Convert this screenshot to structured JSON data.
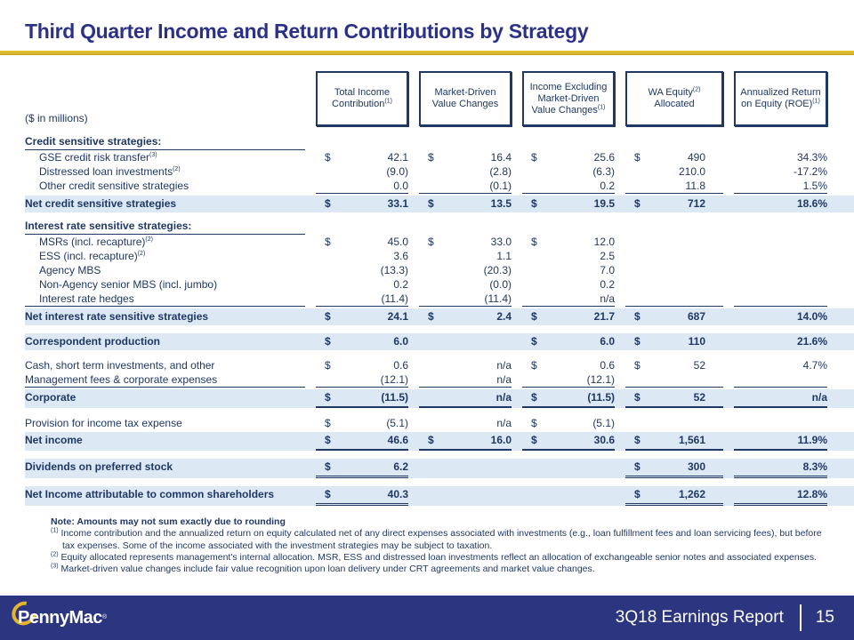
{
  "title": "Third Quarter Income and Return Contributions by Strategy",
  "units_label": "($ in millions)",
  "colors": {
    "navy_text": "#1F3864",
    "title_blue": "#2B3189",
    "gold": "#D9B62C",
    "row_highlight": "#DCE8F4",
    "footer_bg": "#2C3680",
    "logo_gold": "#E8B42A"
  },
  "table": {
    "columns": [
      {
        "lines": [
          "Total Income",
          "Contribution|(1)"
        ]
      },
      {
        "lines": [
          "Market-Driven",
          "Value Changes"
        ]
      },
      {
        "lines": [
          "Income Excluding",
          "Market-Driven",
          "Value Changes|(1)"
        ]
      },
      {
        "lines": [
          "WA Equity|(2)",
          "Allocated"
        ]
      },
      {
        "lines": [
          "Annualized Return",
          "on Equity (ROE)|(1)"
        ]
      }
    ],
    "rows": [
      {
        "type": "section",
        "label": "Credit sensitive strategies:",
        "label_underline": true
      },
      {
        "type": "detail",
        "indent": true,
        "label": "GSE credit risk transfer",
        "sup": "(3)",
        "cells": [
          [
            "$",
            "42.1"
          ],
          [
            "$",
            "16.4"
          ],
          [
            "$",
            "25.6"
          ],
          [
            "$",
            "490"
          ],
          [
            "",
            "34.3%"
          ]
        ]
      },
      {
        "type": "detail",
        "indent": true,
        "label": "Distressed loan investments",
        "sup": "(2)",
        "cells": [
          [
            "",
            "(9.0)"
          ],
          [
            "",
            "(2.8)"
          ],
          [
            "",
            "(6.3)"
          ],
          [
            "",
            "210.0"
          ],
          [
            "",
            "-17.2%"
          ]
        ]
      },
      {
        "type": "detail",
        "indent": true,
        "label": "Other credit sensitive strategies",
        "underline": "single",
        "cells": [
          [
            "",
            "0.0"
          ],
          [
            "",
            "(0.1)"
          ],
          [
            "",
            "0.2"
          ],
          [
            "",
            "11.8"
          ],
          [
            "",
            "1.5%"
          ]
        ]
      },
      {
        "type": "total",
        "highlight": true,
        "label": "Net credit sensitive strategies",
        "cells": [
          [
            "$",
            "33.1"
          ],
          [
            "$",
            "13.5"
          ],
          [
            "$",
            "19.5"
          ],
          [
            "$",
            "712"
          ],
          [
            "",
            "18.6%"
          ]
        ]
      },
      {
        "type": "section",
        "label": "Interest rate sensitive strategies:",
        "label_underline": true
      },
      {
        "type": "detail",
        "indent": true,
        "label": "MSRs (incl. recapture)",
        "sup": "(2)",
        "cells": [
          [
            "$",
            "45.0"
          ],
          [
            "$",
            "33.0"
          ],
          [
            "$",
            "12.0"
          ],
          null,
          null
        ]
      },
      {
        "type": "detail",
        "indent": true,
        "label": "ESS (incl. recapture)",
        "sup": "(2)",
        "cells": [
          [
            "",
            "3.6"
          ],
          [
            "",
            "1.1"
          ],
          [
            "",
            "2.5"
          ],
          null,
          null
        ]
      },
      {
        "type": "detail",
        "indent": true,
        "label": "Agency MBS",
        "cells": [
          [
            "",
            "(13.3)"
          ],
          [
            "",
            "(20.3)"
          ],
          [
            "",
            "7.0"
          ],
          null,
          null
        ]
      },
      {
        "type": "detail",
        "indent": true,
        "label": "Non-Agency senior MBS (incl. jumbo)",
        "cells": [
          [
            "",
            "0.2"
          ],
          [
            "",
            "(0.0)"
          ],
          [
            "",
            "0.2"
          ],
          null,
          null
        ]
      },
      {
        "type": "detail",
        "indent": true,
        "label": "Interest rate hedges",
        "label_underline": true,
        "underline": "single",
        "cells": [
          [
            "",
            "(11.4)"
          ],
          [
            "",
            "(11.4)"
          ],
          [
            "",
            "n/a"
          ],
          [
            "",
            ""
          ],
          [
            "",
            ""
          ]
        ]
      },
      {
        "type": "total",
        "highlight": true,
        "label": "Net interest rate sensitive strategies",
        "cells": [
          [
            "$",
            "24.1"
          ],
          [
            "$",
            "2.4"
          ],
          [
            "$",
            "21.7"
          ],
          [
            "$",
            "687"
          ],
          [
            "",
            "14.0%"
          ]
        ]
      },
      {
        "type": "total",
        "highlight": true,
        "spaced": true,
        "label": "Correspondent production",
        "cells": [
          [
            "$",
            "6.0"
          ],
          null,
          [
            "$",
            "6.0"
          ],
          [
            "$",
            "110"
          ],
          [
            "",
            "21.6%"
          ]
        ]
      },
      {
        "type": "detail",
        "spaced": true,
        "label": "Cash, short term investments, and other",
        "cells": [
          [
            "$",
            "0.6"
          ],
          [
            "",
            "n/a"
          ],
          [
            "$",
            "0.6"
          ],
          [
            "$",
            "52"
          ],
          [
            "",
            "4.7%"
          ]
        ]
      },
      {
        "type": "detail",
        "label": "Management fees & corporate expenses",
        "label_underline": true,
        "underline": "single",
        "cells": [
          [
            "",
            "(12.1)"
          ],
          [
            "",
            "n/a"
          ],
          [
            "",
            "(12.1)"
          ],
          [
            "",
            ""
          ],
          [
            "",
            ""
          ]
        ]
      },
      {
        "type": "total",
        "highlight": true,
        "label": "Corporate",
        "underline": "thick",
        "cells": [
          [
            "$",
            "(11.5)"
          ],
          [
            "",
            "n/a"
          ],
          [
            "$",
            "(11.5)"
          ],
          [
            "$",
            "52"
          ],
          [
            "",
            "n/a"
          ]
        ]
      },
      {
        "type": "detail",
        "spaced": true,
        "label": "Provision for income tax expense",
        "cells": [
          [
            "$",
            "(5.1)"
          ],
          [
            "",
            "n/a"
          ],
          [
            "$",
            "(5.1)"
          ],
          null,
          null
        ]
      },
      {
        "type": "total",
        "highlight": true,
        "label": "Net income",
        "underline": "thick",
        "cells": [
          [
            "$",
            "46.6"
          ],
          [
            "$",
            "16.0"
          ],
          [
            "$",
            "30.6"
          ],
          [
            "$",
            "1,561"
          ],
          [
            "",
            "11.9%"
          ]
        ]
      },
      {
        "type": "total",
        "highlight": true,
        "spaced": true,
        "label": "Dividends on preferred stock",
        "underline": "double",
        "cells": [
          [
            "$",
            "6.2"
          ],
          null,
          null,
          [
            "$",
            "300"
          ],
          [
            "",
            "8.3%"
          ]
        ]
      },
      {
        "type": "total",
        "highlight": true,
        "spaced": true,
        "label": "Net Income attributable to common shareholders",
        "underline": "double",
        "cells": [
          [
            "$",
            "40.3"
          ],
          null,
          null,
          [
            "$",
            "1,262"
          ],
          [
            "",
            "12.8%"
          ]
        ]
      }
    ]
  },
  "notes": {
    "heading": "Note: Amounts may not sum exactly due to rounding",
    "items": [
      {
        "sup": "(1)",
        "text": "Income contribution and the annualized return on equity calculated net of any direct expenses associated with investments (e.g., loan fulfillment fees and loan servicing fees), but before tax expenses.  Some of the income associated with the investment strategies may be subject to taxation."
      },
      {
        "sup": "(2)",
        "text": "Equity allocated represents management's internal allocation.  MSR,  ESS and distressed loan investments reflect an allocation of exchangeable senior notes and associated expenses."
      },
      {
        "sup": "(3)",
        "text": "Market-driven value changes include fair value recognition upon loan delivery under CRT  agreements and market value changes."
      }
    ]
  },
  "footer": {
    "brand": "PennyMac",
    "registered": "®",
    "report": "3Q18 Earnings Report",
    "page": "15"
  }
}
